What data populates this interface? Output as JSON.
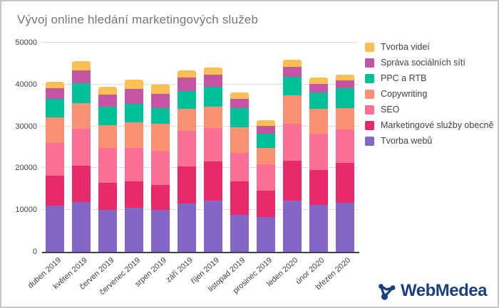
{
  "logo": {
    "text": "WebMedea",
    "color": "#1c3f7e"
  },
  "axis_colors": {
    "grid": "#dcdcdc",
    "axis_line": "#424242",
    "tick_text": "#424242",
    "title_text": "#757575"
  },
  "chart_data": {
    "type": "bar",
    "subtype": "stacked-vertical",
    "title": "Vývoj online hledání marketingových služeb",
    "xlabel": "",
    "ylabel": "",
    "ylim": [
      0,
      50000
    ],
    "yticks": [
      0,
      10000,
      20000,
      30000,
      40000,
      50000
    ],
    "grid": true,
    "legend_position": "right",
    "legend_top_to_bottom": [
      "Tvorba videí",
      "Správa sociálních sítí",
      "PPC a RTB",
      "Copywriting",
      "SEO",
      "Marketingové služby obecně",
      "Tvorba webů"
    ],
    "categories": [
      "duben 2019",
      "květen 2019",
      "červen 2019",
      "červenec 2019",
      "srpen 2019",
      "září 2019",
      "říjen 2019",
      "listopad 2019",
      "prosinec 2019",
      "leden 2020",
      "únor 2020",
      "březen 2020"
    ],
    "series_bottom_to_top": [
      {
        "name": "Tvorba webů",
        "color": "#8565c6",
        "values": [
          11000,
          11900,
          10100,
          10600,
          10100,
          11500,
          12300,
          8900,
          8300,
          12200,
          11200,
          11700
        ]
      },
      {
        "name": "Marketingové služby obecně",
        "color": "#e92a6a",
        "values": [
          7200,
          8600,
          6400,
          6300,
          5900,
          8900,
          9300,
          8000,
          6300,
          9500,
          8400,
          9500
        ]
      },
      {
        "name": "SEO",
        "color": "#fb7094",
        "values": [
          7800,
          9000,
          8300,
          8000,
          8200,
          8500,
          8000,
          6800,
          6400,
          9000,
          8600,
          8000
        ]
      },
      {
        "name": "Copywriting",
        "color": "#fb9173",
        "values": [
          6200,
          6000,
          5500,
          6000,
          6400,
          5300,
          5100,
          6100,
          3900,
          6800,
          6000,
          5200
        ]
      },
      {
        "name": "PPC a RTB",
        "color": "#00c09a",
        "values": [
          4400,
          4800,
          4400,
          4500,
          3800,
          4200,
          4700,
          4600,
          3300,
          4400,
          3900,
          4700
        ]
      },
      {
        "name": "Správa sociálních sítí",
        "color": "#c355a4",
        "values": [
          2500,
          3100,
          2900,
          3500,
          3400,
          3200,
          2900,
          2100,
          1900,
          2300,
          2000,
          1900
        ]
      },
      {
        "name": "Tvorba videí",
        "color": "#fbbe52",
        "values": [
          1600,
          2200,
          1800,
          2200,
          2100,
          1700,
          1800,
          1600,
          1300,
          1700,
          1500,
          1400
        ]
      }
    ],
    "totals": [
      40700,
      45600,
      39400,
      41100,
      39900,
      43300,
      44100,
      38100,
      31400,
      45900,
      41600,
      42400
    ]
  }
}
